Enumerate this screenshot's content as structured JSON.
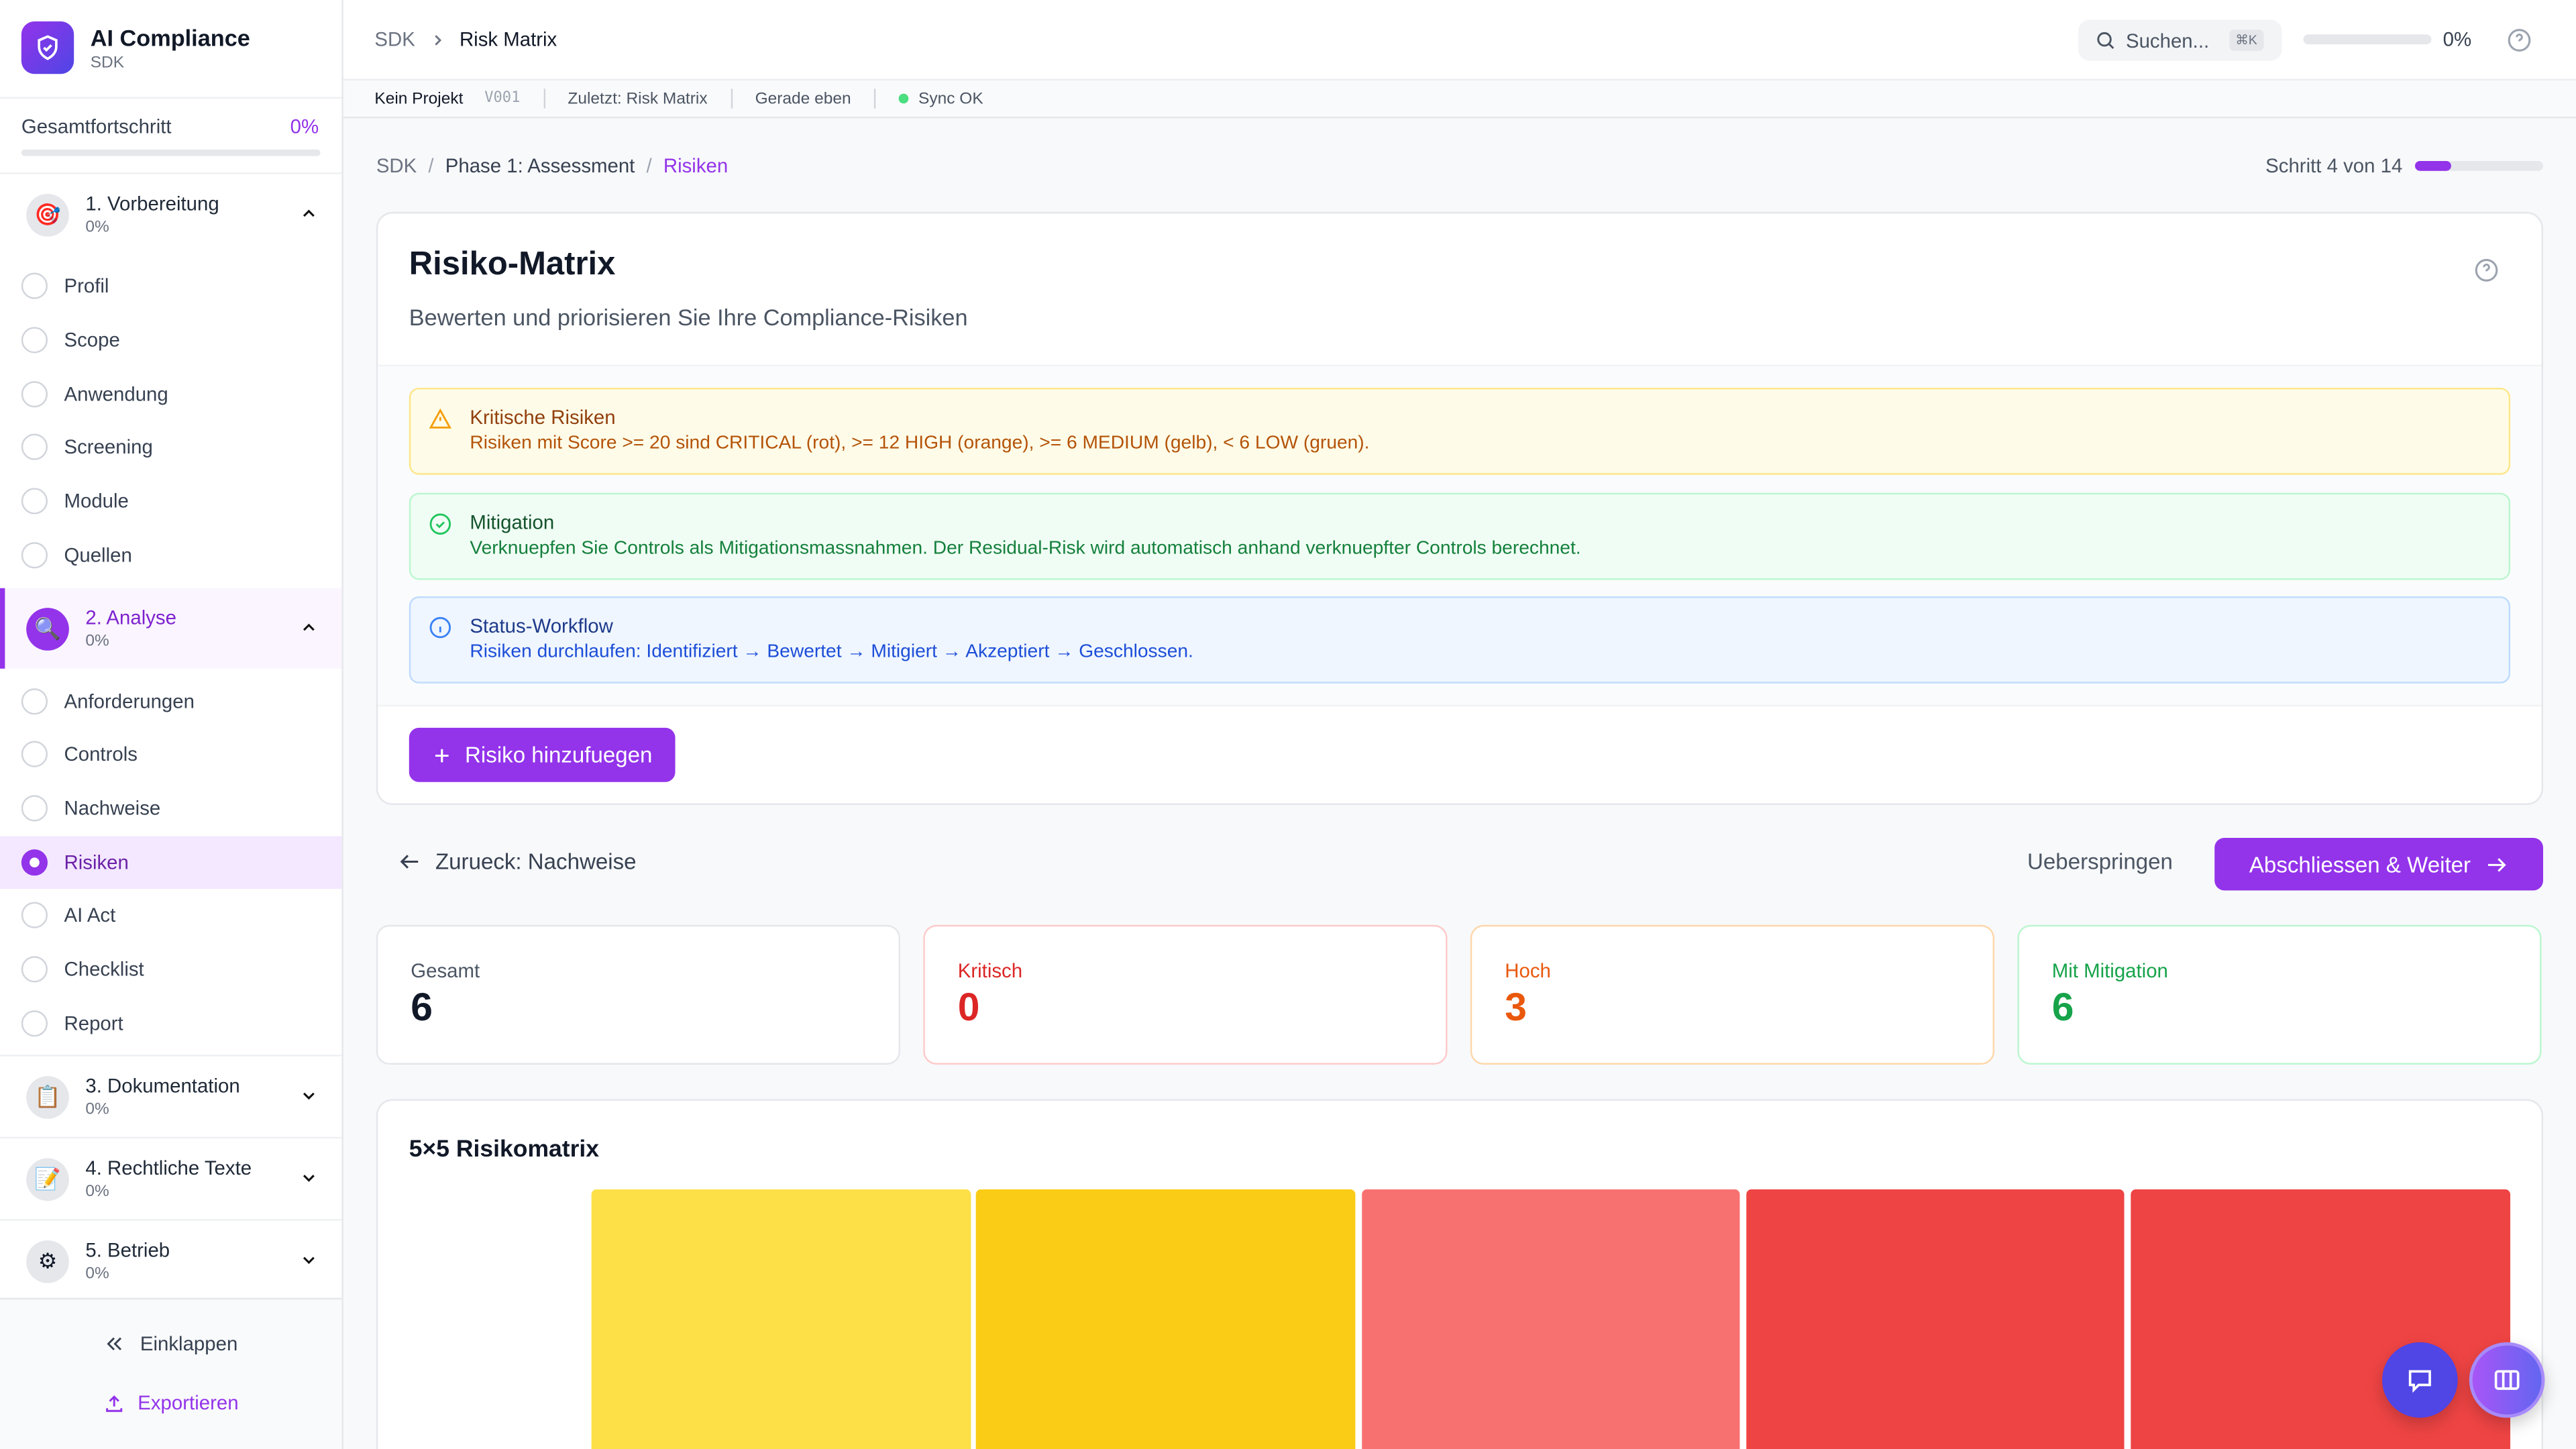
{
  "app": {
    "title": "AI Compliance",
    "subtitle": "SDK"
  },
  "sidebar": {
    "progress_label": "Gesamtfortschritt",
    "progress_value": "0%",
    "progress_fraction": 0,
    "sections": [
      {
        "title": "1. Vorbereitung",
        "pct": "0%",
        "icon": "target-icon",
        "expanded": true,
        "items": [
          "Profil",
          "Scope",
          "Anwendung",
          "Screening",
          "Module",
          "Quellen"
        ]
      },
      {
        "title": "2. Analyse",
        "pct": "0%",
        "icon": "magnifier-icon",
        "expanded": true,
        "items": [
          "Anforderungen",
          "Controls",
          "Nachweise",
          "Risiken",
          "AI Act",
          "Checklist",
          "Report"
        ]
      },
      {
        "title": "3. Dokumentation",
        "pct": "0%",
        "icon": "clipboard-icon",
        "expanded": false
      },
      {
        "title": "4. Rechtliche Texte",
        "pct": "0%",
        "icon": "pencil-document-icon",
        "expanded": false
      },
      {
        "title": "5. Betrieb",
        "pct": "0%",
        "icon": "gear-icon",
        "expanded": false
      }
    ],
    "active_item": "Risiken",
    "collapse_label": "Einklappen",
    "export_label": "Exportieren"
  },
  "header": {
    "breadcrumb": [
      "SDK",
      "Risk Matrix"
    ],
    "search_placeholder": "Suchen...",
    "search_shortcut": "⌘K",
    "progress_value": "0%",
    "progress_fraction": 0
  },
  "subbar": {
    "project": "Kein Projekt",
    "version": "V001",
    "last": "Zuletzt: Risk Matrix",
    "time": "Gerade eben",
    "sync": "Sync OK"
  },
  "breadcrumb": [
    "SDK",
    "Phase 1: Assessment",
    "Risiken"
  ],
  "step": {
    "label": "Schritt 4 von 14",
    "current": 4,
    "total": 14
  },
  "page": {
    "title": "Risiko-Matrix",
    "subtitle": "Bewerten und priorisieren Sie Ihre Compliance-Risiken"
  },
  "alerts": [
    {
      "title": "Kritische Risiken",
      "text": "Risiken mit Score >= 20 sind CRITICAL (rot), >= 12 HIGH (orange), >= 6 MEDIUM (gelb), < 6 LOW (gruen).",
      "icon": "warning-icon"
    },
    {
      "title": "Mitigation",
      "text": "Verknuepfen Sie Controls als Mitigationsmassnahmen. Der Residual-Risk wird automatisch anhand verknuepfter Controls berechnet.",
      "icon": "check-circle-icon"
    },
    {
      "title": "Status-Workflow",
      "text": "Risiken durchlaufen: Identifiziert → Bewertet → Mitigiert → Akzeptiert → Geschlossen.",
      "icon": "info-icon"
    }
  ],
  "add_button": "Risiko hinzufuegen",
  "nav": {
    "back": "Zurueck: Nachweise",
    "skip": "Ueberspringen",
    "next": "Abschliessen & Weiter"
  },
  "stats": [
    {
      "label": "Gesamt",
      "value": "6",
      "color": "#111827",
      "label_color": "#4b5563"
    },
    {
      "label": "Kritisch",
      "value": "0",
      "color": "#dc2626",
      "label_color": "#dc2626"
    },
    {
      "label": "Hoch",
      "value": "3",
      "color": "#ea580c",
      "label_color": "#ea580c"
    },
    {
      "label": "Mit Mitigation",
      "value": "6",
      "color": "#16a34a",
      "label_color": "#16a34a"
    }
  ],
  "matrix": {
    "title": "5×5 Risikomatrix",
    "top_row_colors": [
      "#fde047",
      "#facc15",
      "#f87171",
      "#ef4444",
      "#ef4444"
    ]
  },
  "colors": {
    "accent": "#9333ea",
    "chat_fab": "#4f46e5"
  }
}
